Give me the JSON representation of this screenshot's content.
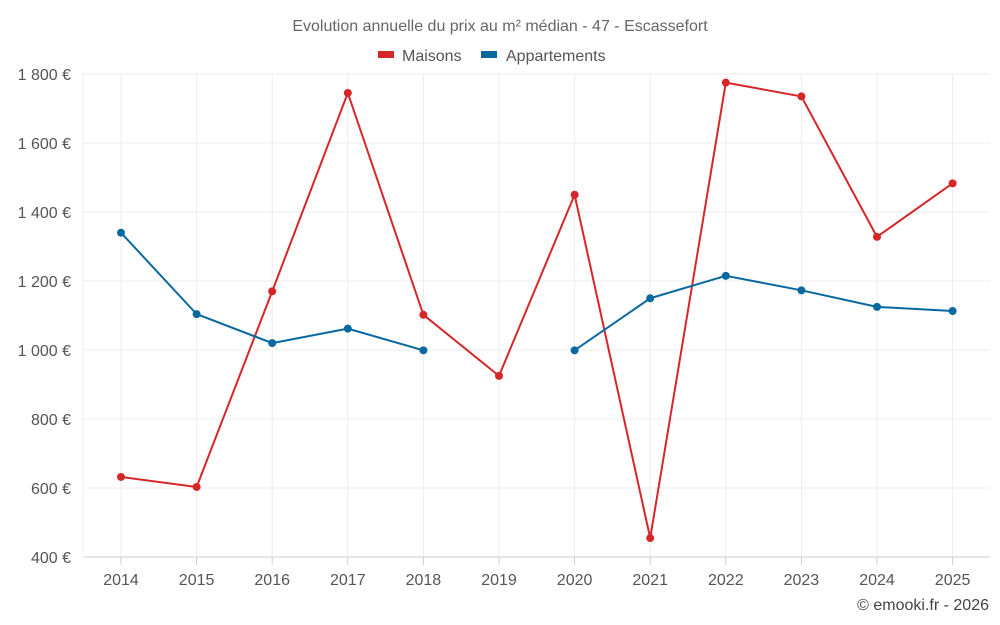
{
  "chart_data": {
    "type": "line",
    "title": "Evolution annuelle du prix au m² médian - 47 - Escassefort",
    "x": [
      "2014",
      "2015",
      "2016",
      "2017",
      "2018",
      "2019",
      "2020",
      "2021",
      "2022",
      "2023",
      "2024",
      "2025"
    ],
    "series": [
      {
        "name": "Maisons",
        "color": "#d62728",
        "values": [
          632,
          603,
          1170,
          1745,
          1102,
          925,
          1450,
          455,
          1775,
          1735,
          1328,
          1483
        ]
      },
      {
        "name": "Appartements",
        "color": "#0868a0",
        "values": [
          1340,
          1104,
          1020,
          1062,
          999,
          null,
          999,
          1150,
          1215,
          1173,
          1125,
          1113
        ]
      }
    ],
    "ylim": [
      400,
      1800
    ],
    "y_ticks": [
      400,
      600,
      800,
      1000,
      1200,
      1400,
      1600,
      1800
    ],
    "y_tick_labels": [
      "400 €",
      "600 €",
      "800 €",
      "1 000 €",
      "1 200 €",
      "1 400 €",
      "1 600 €",
      "1 800 €"
    ],
    "xlabel": "",
    "ylabel": "",
    "grid": true,
    "legend_position": "top-center"
  },
  "credit": "© emooki.fr - 2026"
}
